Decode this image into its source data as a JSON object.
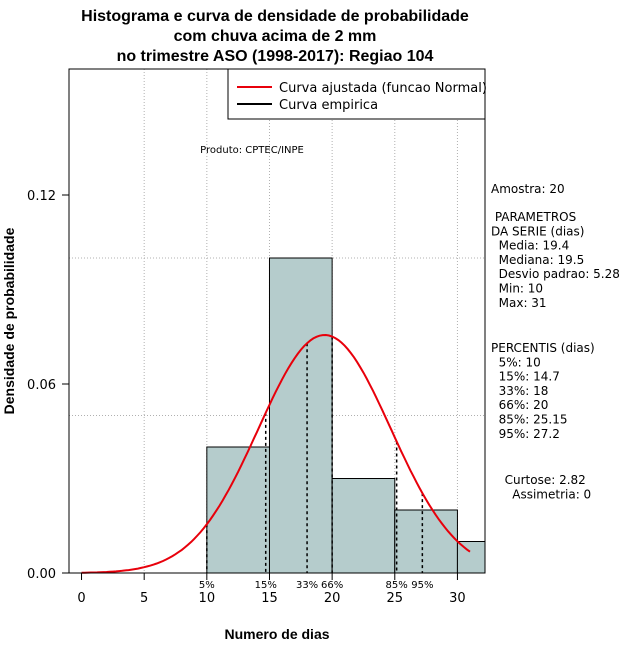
{
  "chart_data": {
    "type": "bar",
    "title": [
      "Histograma e curva de densidade de probabilidade",
      "com chuva acima de 2 mm",
      "no trimestre ASO (1998-2017): Regiao 104"
    ],
    "xlabel": "Numero de dias",
    "ylabel": "Densidade de probabilidade",
    "xlim": [
      -1,
      32.2
    ],
    "ylim": [
      0,
      0.16
    ],
    "x_ticks": [
      0,
      5,
      10,
      15,
      20,
      25,
      30
    ],
    "y_ticks": [
      0.0,
      0.06,
      0.12
    ],
    "y_tick_labels": [
      "0.00",
      "0.06",
      "0.12"
    ],
    "grid_x": [
      5,
      10,
      15,
      20,
      25,
      30
    ],
    "grid_y": [
      0.05,
      0.1
    ],
    "bin_edges": [
      10,
      15,
      20,
      25,
      30,
      35
    ],
    "densities": [
      0.04,
      0.1,
      0.03,
      0.02,
      0.01
    ],
    "bar_color": "#b5cccc",
    "normal_curve": {
      "mean": 19.4,
      "sd": 5.28,
      "x_from": 0,
      "x_to": 31,
      "color": "#e8000b"
    },
    "percentile_lines": [
      {
        "x": 10,
        "label": "5%"
      },
      {
        "x": 14.7,
        "label": "15%"
      },
      {
        "x": 18,
        "label": "33%"
      },
      {
        "x": 20,
        "label": "66%"
      },
      {
        "x": 25.15,
        "label": "85%"
      },
      {
        "x": 27.2,
        "label": "95%"
      }
    ],
    "legend": {
      "position": "top-right",
      "entries": [
        {
          "label": "Curva ajustada (funcao Normal)",
          "color": "#e8000b"
        },
        {
          "label": "Curva empirica",
          "color": "#000000"
        }
      ]
    },
    "annotation": "Produto: CPTEC/INPE",
    "side_panel": [
      [
        "Amostra: 20"
      ],
      [
        " PARAMETROS",
        "DA SERIE (dias)",
        "  Media: 19.4",
        "  Mediana: 19.5",
        "  Desvio padrao: 5.28",
        "  Min: 10",
        "  Max: 31"
      ],
      [
        "PERCENTIS (dias)",
        "  5%: 10",
        "  15%: 14.7",
        "  33%: 18",
        "  66%: 20",
        "  85%: 25.15",
        "  95%: 27.2"
      ],
      [
        "  Curtose: 2.82",
        "    Assimetria: 0"
      ]
    ]
  }
}
